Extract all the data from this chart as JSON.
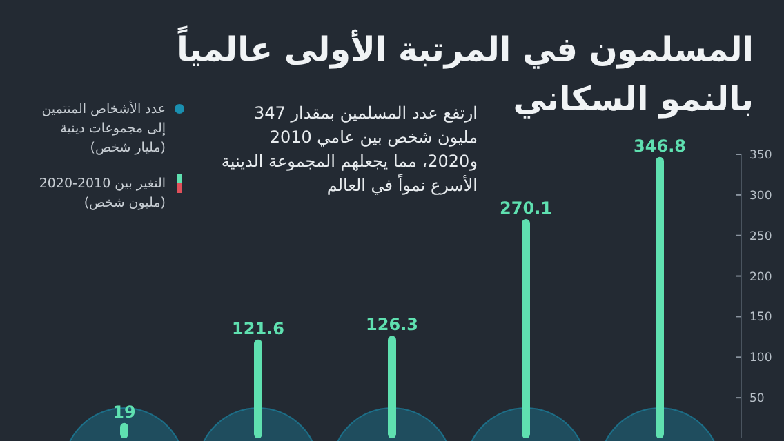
{
  "chart_data": {
    "type": "bar",
    "title": "المسلمون في المرتبة الأولى عالمياً\nبالنمو السكاني",
    "subtitle": "ارتفع عدد المسلمين بمقدار 347\nمليون شخص بين عامي 2010\nو2020، مما يجعلهم المجموعة الدينية\nالأسرع نمواً في العالم",
    "categories": [
      null,
      null,
      null,
      null,
      null
    ],
    "series": [
      {
        "name": "التغير بين 2010-2020\n(مليون شخص)",
        "color": "#5fe0b0",
        "values": [
          19,
          121.6,
          126.3,
          270.1,
          346.8
        ]
      }
    ],
    "annotations": [
      "عدد الأشخاص المنتمين\nإلى مجموعات دينية\n(مليار شخص)"
    ],
    "ylim": [
      0,
      350
    ],
    "yticks": [
      50,
      100,
      150,
      200,
      250,
      300,
      350
    ],
    "data_labels": true,
    "legend": "top left"
  }
}
